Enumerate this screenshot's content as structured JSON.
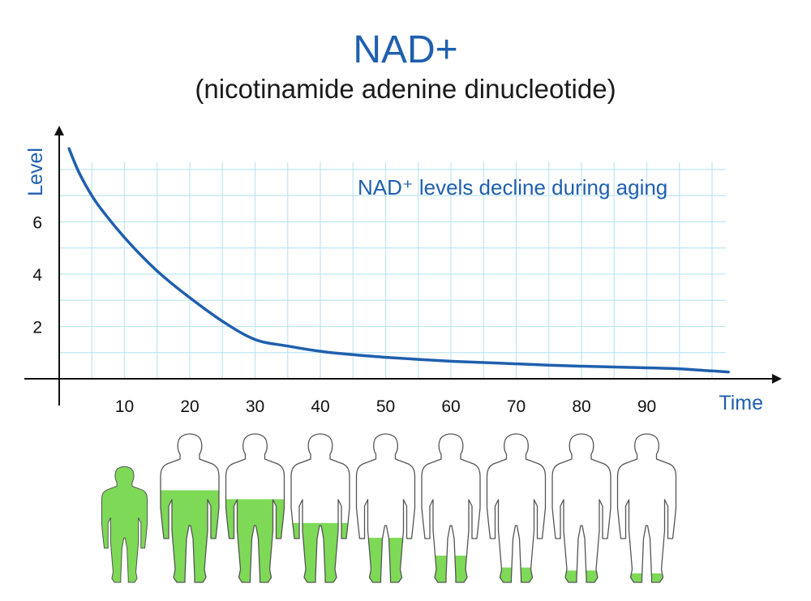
{
  "header": {
    "title": "NAD+",
    "subtitle": "(nicotinamide adenine dinucleotide)"
  },
  "colors": {
    "curve": "#1f5fae",
    "grid": "#bfe6f2",
    "axis": "#111111",
    "fill": "#7ed957",
    "figure_outline": "#555555"
  },
  "chart_data": {
    "type": "line",
    "annotation": "NAD⁺ levels decline during aging",
    "xlabel": "Time",
    "ylabel": "Level",
    "xlim": [
      0,
      110
    ],
    "ylim": [
      0,
      9
    ],
    "x_ticks": [
      10,
      20,
      30,
      40,
      50,
      60,
      70,
      80,
      90
    ],
    "y_ticks": [
      2,
      4,
      6
    ],
    "grid": true,
    "series": [
      {
        "x": [
          1.5,
          3,
          5,
          7,
          10,
          13,
          16,
          20,
          25,
          30,
          35,
          40,
          45,
          50,
          55,
          60,
          65,
          70,
          75,
          80,
          85,
          90,
          95,
          100,
          102.5
        ],
        "values": [
          8.8,
          7.9,
          7.0,
          6.3,
          5.4,
          4.6,
          3.9,
          3.1,
          2.2,
          1.5,
          1.25,
          1.05,
          0.92,
          0.82,
          0.74,
          0.67,
          0.62,
          0.57,
          0.52,
          0.48,
          0.45,
          0.42,
          0.38,
          0.3,
          0.26
        ]
      }
    ],
    "figures": [
      {
        "age": 10,
        "fill_level": 1.0
      },
      {
        "age": 20,
        "fill_level": 0.62
      },
      {
        "age": 30,
        "fill_level": 0.56
      },
      {
        "age": 40,
        "fill_level": 0.4
      },
      {
        "age": 50,
        "fill_level": 0.3
      },
      {
        "age": 60,
        "fill_level": 0.18
      },
      {
        "age": 70,
        "fill_level": 0.1
      },
      {
        "age": 80,
        "fill_level": 0.08
      },
      {
        "age": 90,
        "fill_level": 0.06
      }
    ]
  }
}
